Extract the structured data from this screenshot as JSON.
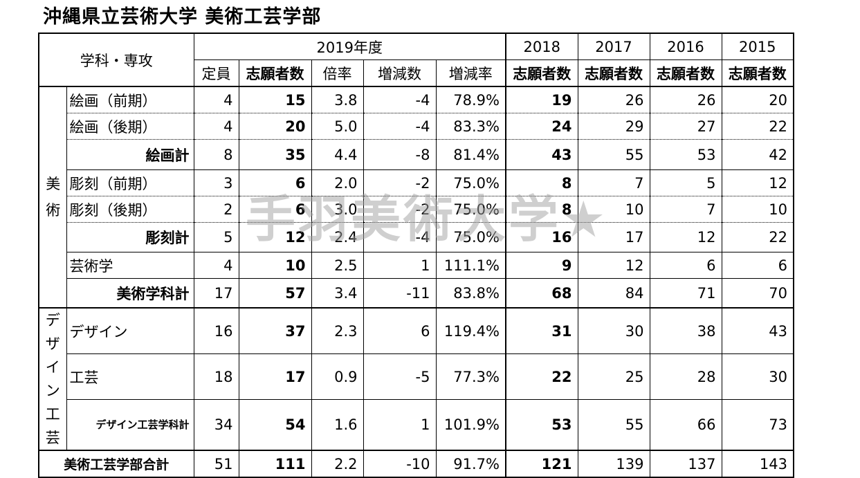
{
  "title": "沖縄県立芸術大学 美術工芸学部",
  "watermark": "手羽美術大学★",
  "header": {
    "dept_col": "学科・専攻",
    "year_2019": "2019年度",
    "sub_2019": [
      "定員",
      "志願者数",
      "倍率",
      "増減数",
      "増減率"
    ],
    "past_years": [
      "2018",
      "2017",
      "2016",
      "2015"
    ],
    "past_sub": "志願者数"
  },
  "groups": {
    "bijutsu": "美術",
    "design": "デザイン工芸"
  },
  "rows": [
    {
      "name": "絵画（前期）",
      "cap": "4",
      "app": "15",
      "ratio": "3.8",
      "diff": "-4",
      "rate": "78.9%",
      "y2018": "19",
      "y2017": "26",
      "y2016": "26",
      "y2015": "20"
    },
    {
      "name": "絵画（後期）",
      "cap": "4",
      "app": "20",
      "ratio": "5.0",
      "diff": "-4",
      "rate": "83.3%",
      "y2018": "24",
      "y2017": "29",
      "y2016": "27",
      "y2015": "22"
    },
    {
      "name": "絵画計",
      "cap": "8",
      "app": "35",
      "ratio": "4.4",
      "diff": "-8",
      "rate": "81.4%",
      "y2018": "43",
      "y2017": "55",
      "y2016": "53",
      "y2015": "42"
    },
    {
      "name": "彫刻（前期）",
      "cap": "3",
      "app": "6",
      "ratio": "2.0",
      "diff": "-2",
      "rate": "75.0%",
      "y2018": "8",
      "y2017": "7",
      "y2016": "5",
      "y2015": "12"
    },
    {
      "name": "彫刻（後期）",
      "cap": "2",
      "app": "6",
      "ratio": "3.0",
      "diff": "-2",
      "rate": "75.0%",
      "y2018": "8",
      "y2017": "10",
      "y2016": "7",
      "y2015": "10"
    },
    {
      "name": "彫刻計",
      "cap": "5",
      "app": "12",
      "ratio": "2.4",
      "diff": "-4",
      "rate": "75.0%",
      "y2018": "16",
      "y2017": "17",
      "y2016": "12",
      "y2015": "22"
    },
    {
      "name": "芸術学",
      "cap": "4",
      "app": "10",
      "ratio": "2.5",
      "diff": "1",
      "rate": "111.1%",
      "y2018": "9",
      "y2017": "12",
      "y2016": "6",
      "y2015": "6"
    },
    {
      "name": "美術学科計",
      "cap": "17",
      "app": "57",
      "ratio": "3.4",
      "diff": "-11",
      "rate": "83.8%",
      "y2018": "68",
      "y2017": "84",
      "y2016": "71",
      "y2015": "70"
    },
    {
      "name": "デザイン",
      "cap": "16",
      "app": "37",
      "ratio": "2.3",
      "diff": "6",
      "rate": "119.4%",
      "y2018": "31",
      "y2017": "30",
      "y2016": "38",
      "y2015": "43"
    },
    {
      "name": "工芸",
      "cap": "18",
      "app": "17",
      "ratio": "0.9",
      "diff": "-5",
      "rate": "77.3%",
      "y2018": "22",
      "y2017": "25",
      "y2016": "28",
      "y2015": "30"
    },
    {
      "name": "デザイン工芸学科計",
      "cap": "34",
      "app": "54",
      "ratio": "1.6",
      "diff": "1",
      "rate": "101.9%",
      "y2018": "53",
      "y2017": "55",
      "y2016": "66",
      "y2015": "73"
    }
  ],
  "total": {
    "name": "美術工芸学部合計",
    "cap": "51",
    "app": "111",
    "ratio": "2.2",
    "diff": "-10",
    "rate": "91.7%",
    "y2018": "121",
    "y2017": "139",
    "y2016": "137",
    "y2015": "143"
  }
}
